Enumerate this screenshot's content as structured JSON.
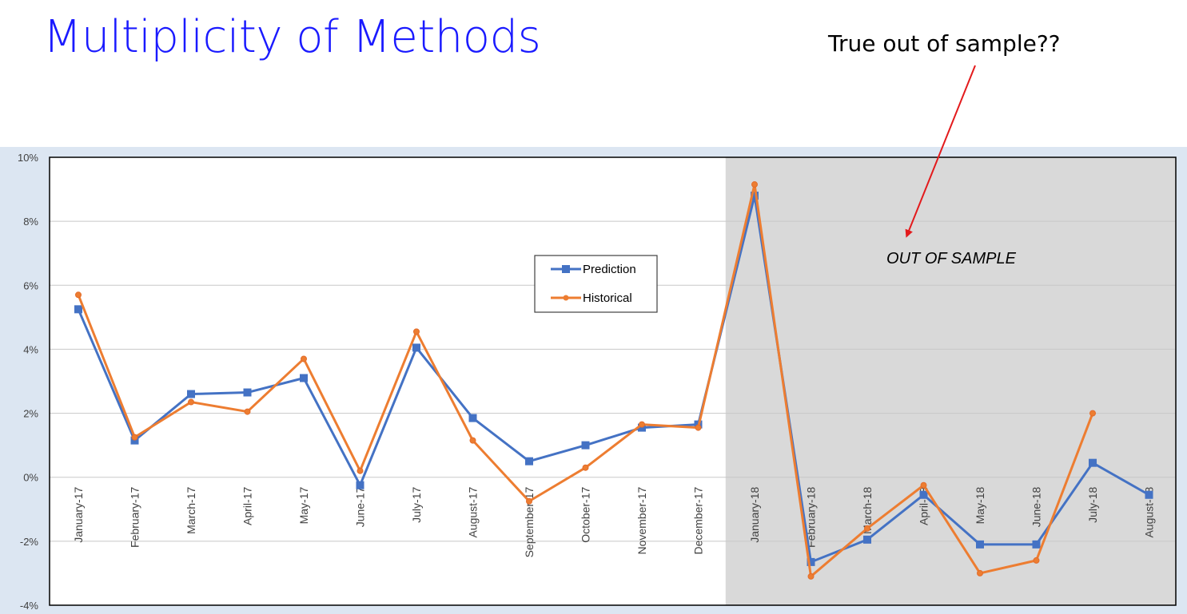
{
  "slide": {
    "title": "Multiplicity of Methods",
    "callout": "True out of sample??"
  },
  "chart_data": {
    "type": "line",
    "categories": [
      "January-17",
      "February-17",
      "March-17",
      "April-17",
      "May-17",
      "June-17",
      "July-17",
      "August-17",
      "September-17",
      "October-17",
      "November-17",
      "December-17",
      "January-18",
      "February-18",
      "March-18",
      "April-18",
      "May-18",
      "June-18",
      "July-18",
      "August-18"
    ],
    "ylim": [
      -4,
      10
    ],
    "yticks": [
      -4,
      -2,
      0,
      2,
      4,
      6,
      8,
      10
    ],
    "ytick_labels": [
      "-4%",
      "-2%",
      "0%",
      "2%",
      "4%",
      "6%",
      "8%",
      "10%"
    ],
    "grid": true,
    "legend": "center",
    "shaded_region": {
      "from": "January-18",
      "label": "OUT OF SAMPLE",
      "color": "#d9d9d9"
    },
    "series": [
      {
        "name": "Prediction",
        "color": "#4472c4",
        "marker": "square",
        "values": [
          5.25,
          1.15,
          2.6,
          2.65,
          3.1,
          -0.25,
          4.05,
          1.85,
          0.5,
          1.0,
          1.55,
          1.65,
          8.8,
          -2.65,
          -1.95,
          -0.55,
          -2.1,
          -2.1,
          0.45,
          -0.55
        ]
      },
      {
        "name": "Historical",
        "color": "#ed7d31",
        "marker": "circle",
        "values": [
          5.7,
          1.25,
          2.35,
          2.05,
          3.7,
          0.2,
          4.55,
          1.15,
          -0.75,
          0.3,
          1.65,
          1.55,
          9.15,
          -3.1,
          -1.6,
          -0.25,
          -3.0,
          -2.6,
          2.0,
          null
        ]
      }
    ]
  }
}
